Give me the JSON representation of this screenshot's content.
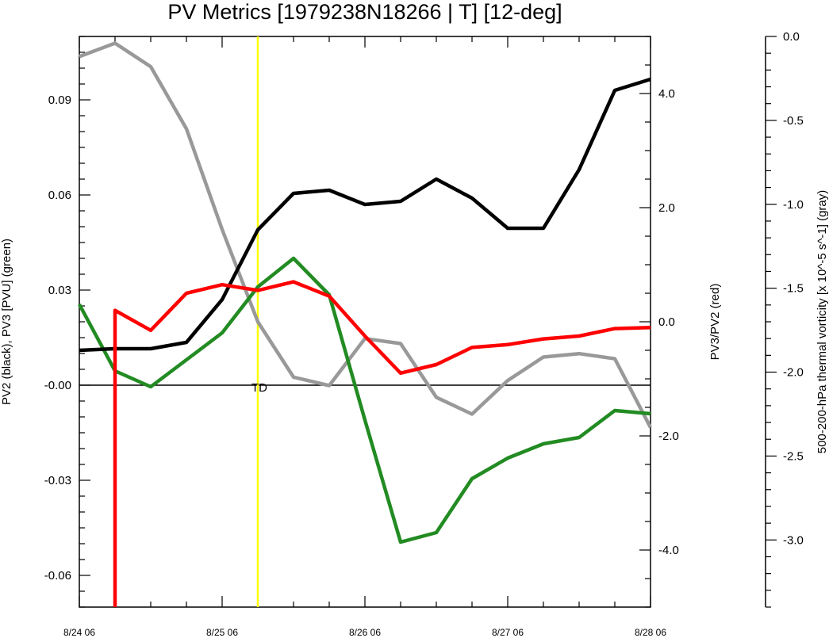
{
  "chart_data": {
    "type": "line",
    "title": "PV Metrics [1979238N18266 | T] [12-deg]",
    "x": {
      "min": 0,
      "max": 16,
      "tick_positions": [
        0,
        4,
        8,
        12,
        16
      ],
      "tick_labels": [
        "8/24 06",
        "8/25 06",
        "8/26 06",
        "8/27 06",
        "8/28 06"
      ]
    },
    "left_axis": {
      "label": "PV2 (black), PV3 [PVU] (green)",
      "range": [
        -0.07,
        0.11
      ],
      "ticks": [
        0.09,
        0.06,
        0.03,
        -0.0,
        -0.03,
        -0.06
      ],
      "tick_labels": [
        "0.09",
        "0.06",
        "0.03",
        "-0.00",
        "-0.03",
        "-0.06"
      ]
    },
    "right_axis": {
      "label": "PV3/PV2 (red)",
      "range": [
        -5.0,
        5.0
      ],
      "ticks": [
        4.0,
        2.0,
        0.0,
        -2.0,
        -4.0
      ],
      "tick_labels": [
        "4.0",
        "2.0",
        "0.0",
        "-2.0",
        "-4.0"
      ]
    },
    "far_right_axis": {
      "label": "500-200-hPa thermal vorticity [x 10^-5 s^-1] (gray)",
      "range": [
        -3.4,
        0.0
      ],
      "ticks": [
        0.0,
        -0.5,
        -1.0,
        -1.5,
        -2.0,
        -2.5,
        -3.0
      ],
      "tick_labels": [
        "0.0",
        "-0.5",
        "-1.0",
        "-1.5",
        "-2.0",
        "-2.5",
        "-3.0"
      ]
    },
    "series": [
      {
        "name": "PV2",
        "axis": "left",
        "color": "#000000",
        "x": [
          0,
          1,
          2,
          3,
          4,
          5,
          6,
          7,
          8,
          9,
          10,
          11,
          12,
          13,
          14,
          15,
          16
        ],
        "values": [
          0.011,
          0.0115,
          0.0115,
          0.0135,
          0.027,
          0.049,
          0.0605,
          0.0615,
          0.057,
          0.058,
          0.065,
          0.059,
          0.0495,
          0.0495,
          0.068,
          0.093,
          0.0965
        ]
      },
      {
        "name": "PV3",
        "axis": "left",
        "color": "#228B22",
        "x": [
          0,
          1,
          2,
          3,
          4,
          5,
          6,
          7,
          8,
          9,
          10,
          11,
          12,
          13,
          14,
          15,
          16
        ],
        "values": [
          0.0255,
          0.0045,
          -0.0005,
          0.008,
          0.0165,
          0.031,
          0.04,
          0.0285,
          -0.011,
          -0.0495,
          -0.0465,
          -0.0295,
          -0.023,
          -0.0185,
          -0.0165,
          -0.008,
          -0.009
        ]
      },
      {
        "name": "PV3/PV2",
        "axis": "right",
        "color": "#FF0000",
        "x": [
          1,
          1,
          2,
          3,
          4,
          5,
          6,
          7,
          8,
          9,
          10,
          11,
          12,
          13,
          14,
          15,
          16
        ],
        "values": [
          -5.0,
          0.2,
          -0.15,
          0.5,
          0.65,
          0.55,
          0.7,
          0.45,
          -0.25,
          -0.9,
          -0.75,
          -0.45,
          -0.4,
          -0.3,
          -0.25,
          -0.12,
          -0.1
        ]
      },
      {
        "name": "thermal vorticity",
        "axis": "far_right",
        "color": "#999999",
        "x": [
          0,
          1,
          2,
          3,
          4,
          5,
          6,
          7,
          8,
          9,
          10,
          11,
          12,
          13,
          14,
          15,
          16
        ],
        "values": [
          -0.12,
          -0.04,
          -0.18,
          -0.55,
          -1.15,
          -1.7,
          -2.03,
          -2.08,
          -1.8,
          -1.83,
          -2.15,
          -2.25,
          -2.05,
          -1.91,
          -1.89,
          -1.92,
          -2.33
        ]
      }
    ],
    "reference_lines": [
      {
        "type": "horizontal",
        "axis": "left",
        "value": 0.0,
        "color": "#000000"
      },
      {
        "type": "vertical",
        "x": 5,
        "color": "#FFFF00"
      }
    ],
    "annotations": [
      {
        "text": "TD",
        "x": 5,
        "axis": "left",
        "y": 0.0
      }
    ],
    "grid": false
  }
}
